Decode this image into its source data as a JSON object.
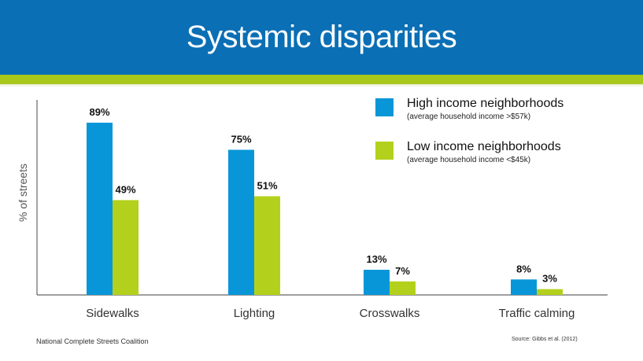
{
  "slide": {
    "title": "Systemic disparities",
    "footer_left": "National Complete Streets Coalition",
    "source": "Source: Gibbs et al. (2012)"
  },
  "colors": {
    "header": "#0a6fb5",
    "accent": "#a8c81c",
    "high": "#0896d8",
    "low": "#b3d11c"
  },
  "chart_data": {
    "type": "bar",
    "title": "Systemic disparities",
    "xlabel": "",
    "ylabel": "% of streets",
    "ylim": [
      0,
      100
    ],
    "grid": false,
    "legend_position": "top-right",
    "categories": [
      "Sidewalks",
      "Lighting",
      "Crosswalks",
      "Traffic calming"
    ],
    "series": [
      {
        "name": "High income neighborhoods",
        "description": "(average household income >$57k)",
        "values": [
          89,
          75,
          13,
          8
        ],
        "labels": [
          "89%",
          "75%",
          "13%",
          "8%"
        ]
      },
      {
        "name": "Low income neighborhoods",
        "description": "(average household income <$45k)",
        "values": [
          49,
          51,
          7,
          3
        ],
        "labels": [
          "49%",
          "51%",
          "7%",
          "3%"
        ]
      }
    ]
  }
}
